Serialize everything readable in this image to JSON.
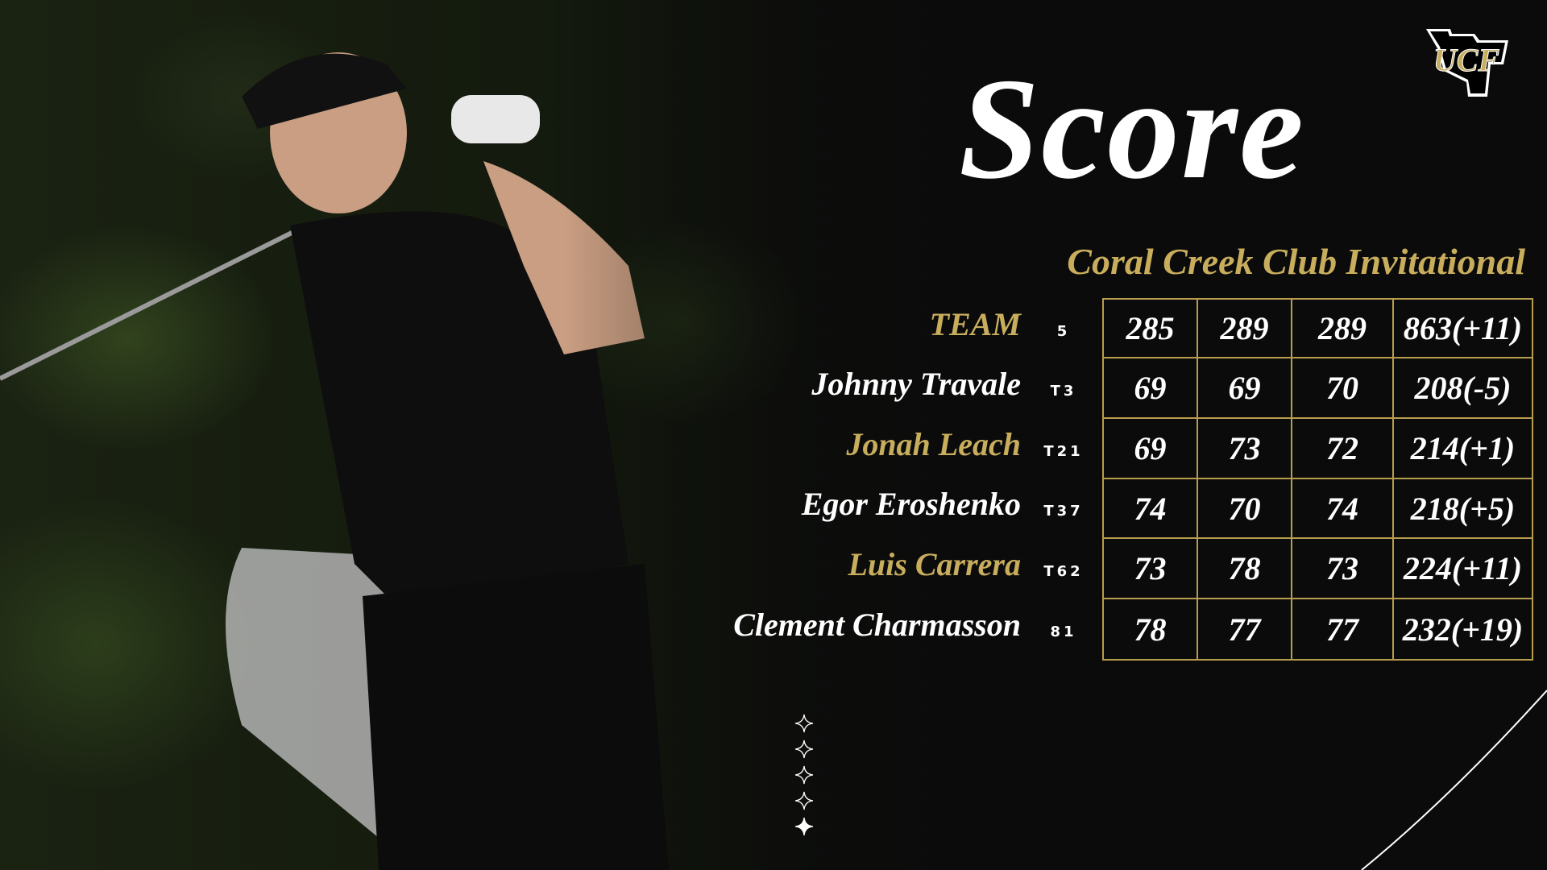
{
  "title": "Score",
  "event": "Coral Creek Club Invitational",
  "logo": {
    "text": "UCF",
    "colors": {
      "gold": "#c8ae5c",
      "black": "#000000",
      "white": "#ffffff"
    }
  },
  "colors": {
    "accent_gold": "#c8ae5c",
    "grid_gold": "#b99d4e",
    "background": "#0b0b0b"
  },
  "rows": [
    {
      "name": "TEAM",
      "rank": "5",
      "rounds": [
        "285",
        "289",
        "289"
      ],
      "total": "863(+11)",
      "highlight": true
    },
    {
      "name": "Johnny Travale",
      "rank": "T3",
      "rounds": [
        "69",
        "69",
        "70"
      ],
      "total": "208(-5)",
      "highlight": false
    },
    {
      "name": "Jonah Leach",
      "rank": "T21",
      "rounds": [
        "69",
        "73",
        "72"
      ],
      "total": "214(+1)",
      "highlight": true
    },
    {
      "name": "Egor Eroshenko",
      "rank": "T37",
      "rounds": [
        "74",
        "70",
        "74"
      ],
      "total": "218(+5)",
      "highlight": false
    },
    {
      "name": "Luis Carrera",
      "rank": "T62",
      "rounds": [
        "73",
        "78",
        "73"
      ],
      "total": "224(+11)",
      "highlight": true
    },
    {
      "name": "Clement Charmasson",
      "rank": "81",
      "rounds": [
        "78",
        "77",
        "77"
      ],
      "total": "232(+19)",
      "highlight": false
    }
  ],
  "page_indicator": {
    "total": 5,
    "active": 5
  }
}
